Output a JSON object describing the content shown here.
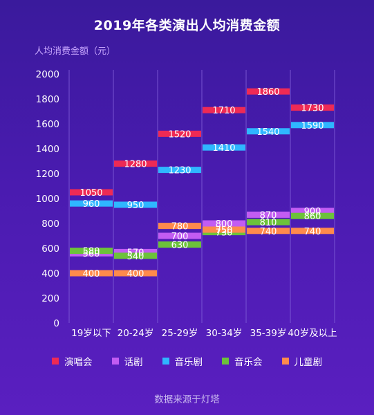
{
  "chart_data": {
    "type": "bar",
    "title": "2019年各类演出人均消费金额",
    "ylabel": "人均消费金额（元）",
    "xlabel": "",
    "ylim": [
      0,
      2000
    ],
    "yticks": [
      "0",
      "200",
      "400",
      "600",
      "800",
      "1000",
      "1200",
      "1400",
      "1600",
      "1800",
      "2000"
    ],
    "categories": [
      "19岁以下",
      "20-24岁",
      "25-29岁",
      "30-34岁",
      "35-39岁",
      "40岁及以上"
    ],
    "series": [
      {
        "name": "演唱会",
        "color": "#ee2a55",
        "values": [
          1050,
          1280,
          1520,
          1710,
          1860,
          1730
        ]
      },
      {
        "name": "话剧",
        "color": "#c25cf2",
        "values": [
          560,
          570,
          700,
          800,
          870,
          900
        ]
      },
      {
        "name": "音乐剧",
        "color": "#2fb6ff",
        "values": [
          960,
          950,
          1230,
          1410,
          1540,
          1590
        ]
      },
      {
        "name": "音乐会",
        "color": "#6cc23a",
        "values": [
          580,
          540,
          630,
          730,
          810,
          860
        ]
      },
      {
        "name": "儿童剧",
        "color": "#ff8a4c",
        "values": [
          400,
          400,
          780,
          750,
          740,
          740
        ]
      }
    ],
    "grid": false,
    "legend": "bottom",
    "source": "数据来源于灯塔"
  }
}
